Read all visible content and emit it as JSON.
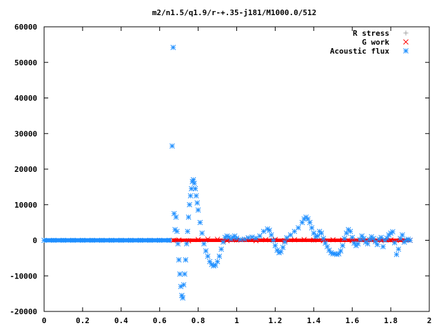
{
  "chart_data": {
    "type": "scatter",
    "title": "m2/n1.5/q1.9/r-+.35-j181/M1000.0/512",
    "xlabel": "",
    "ylabel": "",
    "xlim": [
      0,
      2
    ],
    "ylim": [
      -20000,
      60000
    ],
    "x_ticks": [
      "0",
      "0.2",
      "0.4",
      "0.6",
      "0.8",
      "1",
      "1.2",
      "1.4",
      "1.6",
      "1.8",
      "2"
    ],
    "y_ticks": [
      "60000",
      "50000",
      "40000",
      "30000",
      "20000",
      "10000",
      "0",
      "-10000",
      "-20000"
    ],
    "grid": false,
    "legend_position": "top-right",
    "series": [
      {
        "name": "R stress",
        "color": "#a0a0a0",
        "marker": "plus",
        "points": [
          [
            0.67,
            0
          ],
          [
            0.75,
            0
          ],
          [
            0.85,
            0
          ],
          [
            1.0,
            0
          ],
          [
            1.2,
            0
          ],
          [
            1.4,
            0
          ],
          [
            1.6,
            0
          ],
          [
            1.8,
            0
          ],
          [
            1.9,
            0
          ]
        ]
      },
      {
        "name": "G work",
        "color": "#ff0000",
        "marker": "cross",
        "points": [
          [
            0.67,
            0
          ],
          [
            0.7,
            80
          ],
          [
            0.75,
            -150
          ],
          [
            0.8,
            200
          ],
          [
            0.85,
            300
          ],
          [
            0.9,
            250
          ],
          [
            0.95,
            -100
          ],
          [
            1.0,
            100
          ],
          [
            1.05,
            200
          ],
          [
            1.1,
            -100
          ],
          [
            1.15,
            150
          ],
          [
            1.2,
            200
          ],
          [
            1.25,
            -100
          ],
          [
            1.3,
            150
          ],
          [
            1.35,
            200
          ],
          [
            1.4,
            100
          ],
          [
            1.45,
            -100
          ],
          [
            1.5,
            150
          ],
          [
            1.55,
            100
          ],
          [
            1.6,
            -100
          ],
          [
            1.65,
            100
          ],
          [
            1.7,
            50
          ],
          [
            1.75,
            -100
          ],
          [
            1.8,
            100
          ],
          [
            1.85,
            0
          ],
          [
            1.9,
            0
          ]
        ]
      },
      {
        "name": "Acoustic flux",
        "color": "#1f8fff",
        "marker": "star",
        "points": [
          [
            0.0,
            0
          ],
          [
            0.05,
            0
          ],
          [
            0.1,
            0
          ],
          [
            0.15,
            0
          ],
          [
            0.2,
            0
          ],
          [
            0.25,
            0
          ],
          [
            0.3,
            0
          ],
          [
            0.35,
            0
          ],
          [
            0.4,
            0
          ],
          [
            0.45,
            0
          ],
          [
            0.5,
            0
          ],
          [
            0.55,
            0
          ],
          [
            0.6,
            0
          ],
          [
            0.65,
            0
          ],
          [
            0.665,
            26500
          ],
          [
            0.67,
            54200
          ],
          [
            0.675,
            7500
          ],
          [
            0.68,
            3000
          ],
          [
            0.685,
            6500
          ],
          [
            0.69,
            2500
          ],
          [
            0.695,
            -1000
          ],
          [
            0.7,
            -5500
          ],
          [
            0.705,
            -9500
          ],
          [
            0.71,
            -13000
          ],
          [
            0.715,
            -15500
          ],
          [
            0.72,
            -16200
          ],
          [
            0.725,
            -12500
          ],
          [
            0.73,
            -9500
          ],
          [
            0.735,
            -5500
          ],
          [
            0.74,
            -1000
          ],
          [
            0.745,
            2500
          ],
          [
            0.75,
            6500
          ],
          [
            0.755,
            10000
          ],
          [
            0.76,
            12500
          ],
          [
            0.765,
            14500
          ],
          [
            0.77,
            16500
          ],
          [
            0.775,
            17000
          ],
          [
            0.78,
            16000
          ],
          [
            0.785,
            14500
          ],
          [
            0.79,
            12500
          ],
          [
            0.795,
            10500
          ],
          [
            0.8,
            8500
          ],
          [
            0.81,
            5000
          ],
          [
            0.82,
            2000
          ],
          [
            0.83,
            -1000
          ],
          [
            0.84,
            -3000
          ],
          [
            0.85,
            -4500
          ],
          [
            0.86,
            -6000
          ],
          [
            0.87,
            -6800
          ],
          [
            0.88,
            -7200
          ],
          [
            0.89,
            -7000
          ],
          [
            0.9,
            -6000
          ],
          [
            0.91,
            -4500
          ],
          [
            0.92,
            -2500
          ],
          [
            0.93,
            -500
          ],
          [
            0.94,
            800
          ],
          [
            0.95,
            1200
          ],
          [
            0.96,
            900
          ],
          [
            0.97,
            300
          ],
          [
            0.98,
            800
          ],
          [
            0.99,
            1200
          ],
          [
            1.0,
            600
          ],
          [
            1.02,
            200
          ],
          [
            1.04,
            300
          ],
          [
            1.06,
            700
          ],
          [
            1.08,
            900
          ],
          [
            1.1,
            600
          ],
          [
            1.12,
            1200
          ],
          [
            1.14,
            2500
          ],
          [
            1.16,
            3200
          ],
          [
            1.17,
            2800
          ],
          [
            1.18,
            1500
          ],
          [
            1.19,
            0
          ],
          [
            1.2,
            -1500
          ],
          [
            1.21,
            -2800
          ],
          [
            1.22,
            -3500
          ],
          [
            1.23,
            -3200
          ],
          [
            1.24,
            -2000
          ],
          [
            1.25,
            -500
          ],
          [
            1.26,
            700
          ],
          [
            1.28,
            1500
          ],
          [
            1.3,
            2500
          ],
          [
            1.32,
            3500
          ],
          [
            1.34,
            5000
          ],
          [
            1.35,
            6000
          ],
          [
            1.36,
            6500
          ],
          [
            1.37,
            6000
          ],
          [
            1.38,
            5000
          ],
          [
            1.39,
            3500
          ],
          [
            1.4,
            2000
          ],
          [
            1.41,
            1000
          ],
          [
            1.42,
            1200
          ],
          [
            1.43,
            2500
          ],
          [
            1.44,
            2000
          ],
          [
            1.45,
            500
          ],
          [
            1.46,
            -800
          ],
          [
            1.47,
            -1800
          ],
          [
            1.48,
            -2800
          ],
          [
            1.49,
            -3500
          ],
          [
            1.5,
            -3800
          ],
          [
            1.51,
            -3800
          ],
          [
            1.52,
            -4000
          ],
          [
            1.53,
            -3800
          ],
          [
            1.54,
            -3000
          ],
          [
            1.55,
            -1500
          ],
          [
            1.56,
            500
          ],
          [
            1.57,
            2000
          ],
          [
            1.58,
            3000
          ],
          [
            1.59,
            2500
          ],
          [
            1.6,
            800
          ],
          [
            1.61,
            -800
          ],
          [
            1.62,
            -1500
          ],
          [
            1.63,
            -1000
          ],
          [
            1.64,
            200
          ],
          [
            1.65,
            1200
          ],
          [
            1.66,
            500
          ],
          [
            1.67,
            -500
          ],
          [
            1.68,
            -1000
          ],
          [
            1.69,
            200
          ],
          [
            1.7,
            1000
          ],
          [
            1.71,
            500
          ],
          [
            1.72,
            -400
          ],
          [
            1.73,
            -1200
          ],
          [
            1.74,
            300
          ],
          [
            1.75,
            800
          ],
          [
            1.76,
            -1800
          ],
          [
            1.77,
            0
          ],
          [
            1.78,
            600
          ],
          [
            1.79,
            1500
          ],
          [
            1.8,
            2000
          ],
          [
            1.81,
            2400
          ],
          [
            1.82,
            -700
          ],
          [
            1.83,
            -4000
          ],
          [
            1.84,
            -2500
          ],
          [
            1.85,
            500
          ],
          [
            1.86,
            1500
          ],
          [
            1.87,
            -500
          ],
          [
            1.88,
            0
          ],
          [
            1.89,
            300
          ],
          [
            1.9,
            0
          ]
        ]
      }
    ]
  }
}
